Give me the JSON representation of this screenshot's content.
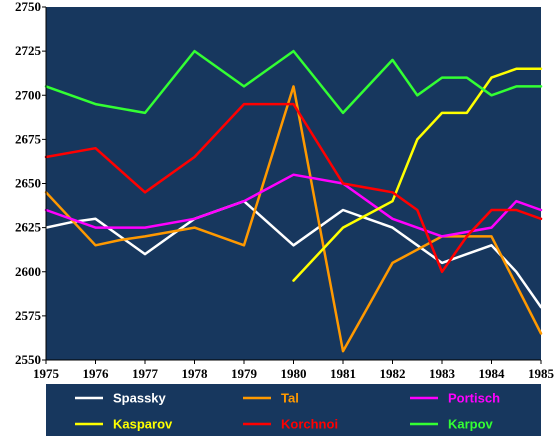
{
  "chart_data": {
    "type": "line",
    "xlim": [
      1975,
      1985
    ],
    "ylim": [
      2550,
      2750
    ],
    "x_ticks": [
      "1975",
      "1976",
      "1977",
      "1978",
      "1979",
      "1980",
      "1981",
      "1982",
      "1983",
      "1984",
      "1985"
    ],
    "y_ticks": [
      "2550",
      "2575",
      "2600",
      "2625",
      "2650",
      "2675",
      "2700",
      "2725",
      "2750"
    ],
    "grid": false,
    "legend_position": "bottom",
    "colors": {
      "plot_background": "#17375e",
      "axis": "#000000"
    },
    "series": [
      {
        "name": "Spassky",
        "color": "#ffffff",
        "points": [
          [
            1975,
            2625
          ],
          [
            1975.5,
            2628
          ],
          [
            1976,
            2630
          ],
          [
            1977,
            2610
          ],
          [
            1977.5,
            2620
          ],
          [
            1978,
            2630
          ],
          [
            1979,
            2640
          ],
          [
            1980,
            2615
          ],
          [
            1981,
            2635
          ],
          [
            1981.5,
            2630
          ],
          [
            1982,
            2625
          ],
          [
            1982.5,
            2615
          ],
          [
            1983,
            2605
          ],
          [
            1983.5,
            2610
          ],
          [
            1984,
            2615
          ],
          [
            1984.5,
            2600
          ],
          [
            1985,
            2580
          ]
        ]
      },
      {
        "name": "Tal",
        "color": "#ff9900",
        "points": [
          [
            1975,
            2645
          ],
          [
            1976,
            2615
          ],
          [
            1976.5,
            2618
          ],
          [
            1977,
            2620
          ],
          [
            1978,
            2625
          ],
          [
            1979,
            2615
          ],
          [
            1980,
            2705
          ],
          [
            1981,
            2555
          ],
          [
            1981.5,
            2580
          ],
          [
            1982,
            2605
          ],
          [
            1983,
            2620
          ],
          [
            1984,
            2620
          ],
          [
            1985,
            2565
          ]
        ]
      },
      {
        "name": "Portisch",
        "color": "#ff00ff",
        "points": [
          [
            1975,
            2635
          ],
          [
            1976,
            2625
          ],
          [
            1977,
            2625
          ],
          [
            1978,
            2630
          ],
          [
            1979,
            2640
          ],
          [
            1980,
            2655
          ],
          [
            1981,
            2650
          ],
          [
            1982,
            2630
          ],
          [
            1983,
            2620
          ],
          [
            1984,
            2625
          ],
          [
            1984.5,
            2640
          ],
          [
            1985,
            2635
          ]
        ]
      },
      {
        "name": "Kasparov",
        "color": "#ffff00",
        "points": [
          [
            1980,
            2595
          ],
          [
            1981,
            2625
          ],
          [
            1982,
            2640
          ],
          [
            1982.5,
            2675
          ],
          [
            1983,
            2690
          ],
          [
            1983.5,
            2690
          ],
          [
            1984,
            2710
          ],
          [
            1984.5,
            2715
          ],
          [
            1985,
            2715
          ]
        ]
      },
      {
        "name": "Korchnoi",
        "color": "#ff0000",
        "points": [
          [
            1975,
            2665
          ],
          [
            1976,
            2670
          ],
          [
            1977,
            2645
          ],
          [
            1978,
            2665
          ],
          [
            1979,
            2695
          ],
          [
            1980,
            2695
          ],
          [
            1981,
            2650
          ],
          [
            1982,
            2645
          ],
          [
            1982.5,
            2635
          ],
          [
            1983,
            2600
          ],
          [
            1983.5,
            2620
          ],
          [
            1984,
            2635
          ],
          [
            1984.5,
            2635
          ],
          [
            1985,
            2630
          ]
        ]
      },
      {
        "name": "Karpov",
        "color": "#33ff33",
        "points": [
          [
            1975,
            2705
          ],
          [
            1976,
            2695
          ],
          [
            1977,
            2690
          ],
          [
            1978,
            2725
          ],
          [
            1979,
            2705
          ],
          [
            1980,
            2725
          ],
          [
            1981,
            2690
          ],
          [
            1982,
            2720
          ],
          [
            1982.5,
            2700
          ],
          [
            1983,
            2710
          ],
          [
            1983.5,
            2710
          ],
          [
            1984,
            2700
          ],
          [
            1984.5,
            2705
          ],
          [
            1985,
            2705
          ]
        ]
      }
    ]
  }
}
